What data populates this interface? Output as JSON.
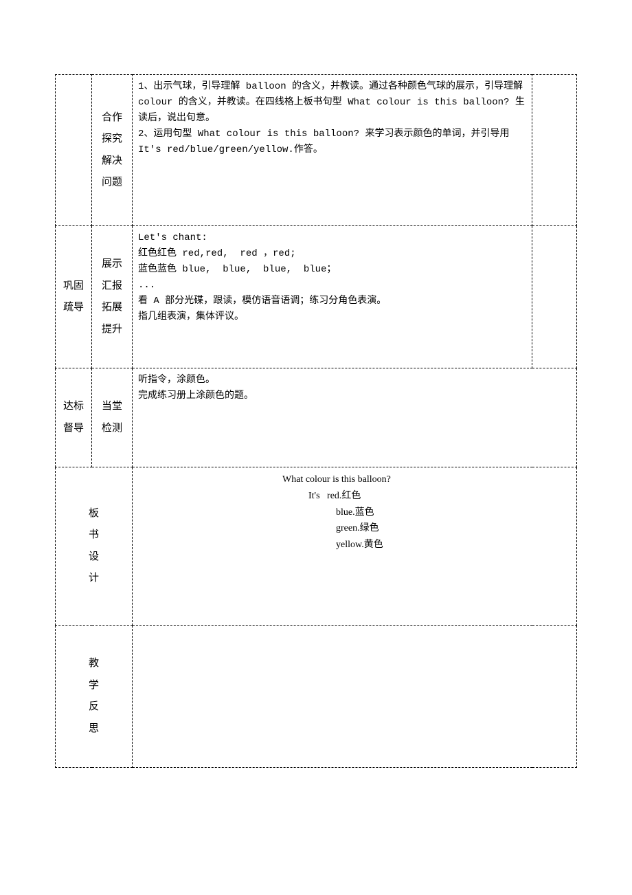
{
  "table": {
    "border_color": "#000000",
    "border_style": "dashed",
    "font_size": 14,
    "font_family": "SimSun",
    "background_color": "#ffffff"
  },
  "row1": {
    "col_b": "合作\n探究\n解决\n问题",
    "content": "1、出示气球，引导理解 balloon 的含义，并教读。通过各种颜色气球的展示，引导理解 colour 的含义，并教读。在四线格上板书句型 What colour is this balloon? 生读后，说出句意。\n2、运用句型 What colour is this balloon? 来学习表示颜色的单词，并引导用 It's red/blue/green/yellow.作答。"
  },
  "row2": {
    "col_a": "巩固疏导",
    "col_b": "展示\n汇报\n拓展\n提升",
    "content": "Let's chant:\n红色红色 red,red,  red ，red;\n蓝色蓝色 blue,  blue,  blue,  blue；\n...\n看 A 部分光碟，跟读，模仿语音语调；练习分角色表演。\n指几组表演，集体评议。"
  },
  "row3": {
    "col_a": "达标督导",
    "col_b": "当堂\n检测",
    "content": "听指令，涂颜色。\n完成练习册上涂颜色的题。"
  },
  "row4": {
    "col_b": "板\n书\n设\n计",
    "board": {
      "title_en": "What colour is this balloon?",
      "line_its": "It's",
      "items": [
        {
          "en": "red.",
          "zh": "红色"
        },
        {
          "en": "blue.",
          "zh": "蓝色"
        },
        {
          "en": "green.",
          "zh": "绿色"
        },
        {
          "en": "yellow.",
          "zh": "黄色"
        }
      ]
    }
  },
  "row5": {
    "col_b": "教\n学\n反\n思",
    "content": ""
  }
}
